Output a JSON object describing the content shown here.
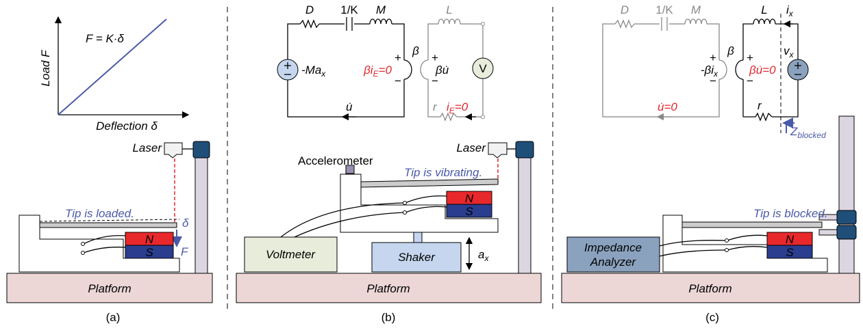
{
  "panel_a": {
    "graph": {
      "y_axis": "Load F",
      "x_axis": "Deflection δ",
      "equation": "F = K·δ"
    },
    "laser": "Laser",
    "annotation": "Tip is loaded.",
    "delta": "δ",
    "force": "F",
    "magnet": {
      "north": "N",
      "south": "S"
    },
    "platform": "Platform",
    "caption": "(a)"
  },
  "panel_b": {
    "circuit": {
      "damper": "D",
      "spring": "1/K",
      "mass": "M",
      "inductor": "L",
      "source": {
        "main": "-Ma",
        "sub": "x"
      },
      "beta": "β",
      "beta_ie": {
        "main": "βi",
        "sub": "E",
        "post": "=0"
      },
      "beta_u": "βu̇",
      "velocity": "u̇",
      "resistor": "r",
      "ie": {
        "main": "i",
        "sub": "E",
        "post": "=0"
      },
      "voltmeter_symbol": "V",
      "signs": [
        "+",
        "−",
        "+",
        "−"
      ]
    },
    "accelerometer": "Accelerometer",
    "laser": "Laser",
    "annotation": "Tip is vibrating.",
    "magnet": {
      "north": "N",
      "south": "S"
    },
    "voltmeter": "Voltmeter",
    "shaker": "Shaker",
    "acceleration": {
      "main": "a",
      "sub": "x"
    },
    "platform": "Platform",
    "caption": "(b)"
  },
  "panel_c": {
    "circuit": {
      "damper": "D",
      "spring": "1/K",
      "mass": "M",
      "inductor": "L",
      "current": {
        "main": "i",
        "sub": "x"
      },
      "voltage": {
        "main": "v",
        "sub": "x"
      },
      "source": {
        "main": "-βi",
        "sub": "x"
      },
      "beta": "β",
      "beta_u": "βu̇=0",
      "velocity": "u̇=0",
      "resistor": "r",
      "impedance": {
        "main": "Z",
        "sub": "blocked"
      },
      "signs": [
        "+",
        "−",
        "+",
        "−"
      ]
    },
    "annotation": "Tip is blocked.",
    "magnet": {
      "north": "N",
      "south": "S"
    },
    "analyzer": [
      "Impedance",
      "Analyzer"
    ],
    "platform": "Platform",
    "caption": "(c)"
  }
}
